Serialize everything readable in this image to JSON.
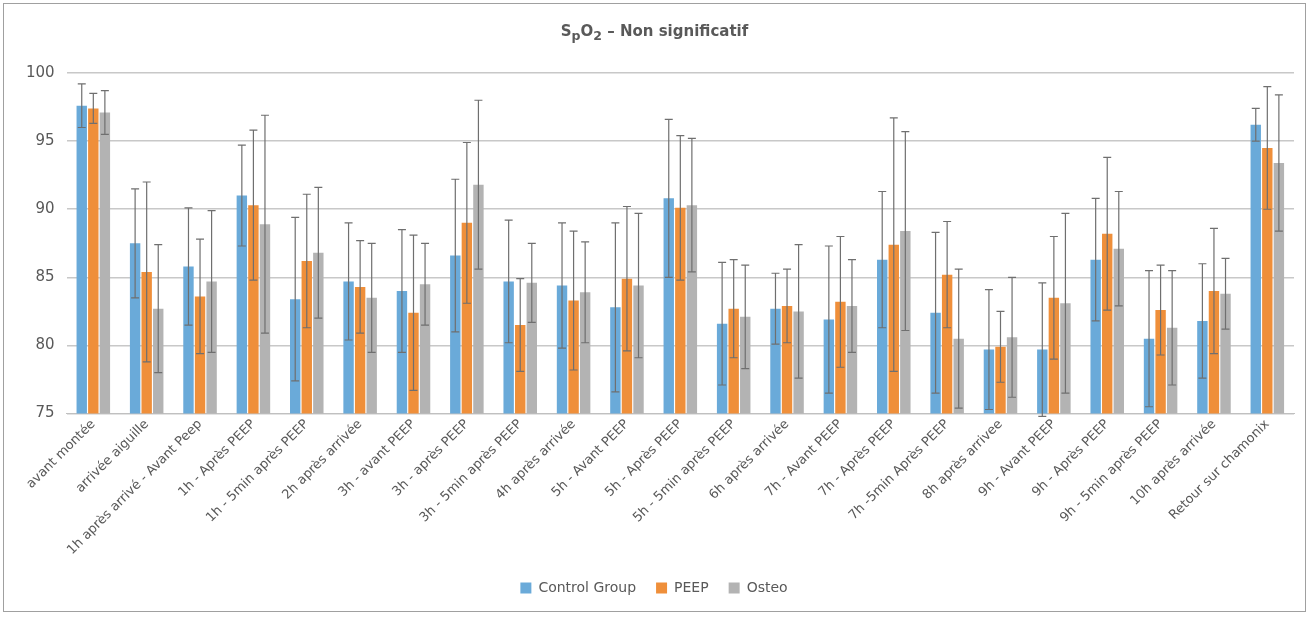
{
  "chart_data": {
    "type": "bar",
    "title": "S$_{p}$O$_{2}$ – Non significatif",
    "categories": [
      "avant montée",
      "arrivée aiguille",
      "1h après arrivé - Avant Peep",
      "1h - Après PEEP",
      "1h - 5min après PEEP",
      "2h après arrivée",
      "3h - avant PEEP",
      "3h - après PEEP",
      "3h - 5min après PEEP",
      "4h après arrivée",
      "5h - Avant PEEP",
      "5h - Après PEEP",
      "5h - 5min après PEEP",
      "6h après arrivée",
      "7h - Avant PEEP",
      "7h - Après PEEP",
      "7h -5min Après PEEP",
      "8h après arrivee",
      "9h - Avant PEEP",
      "9h - Après PEEP",
      "9h - 5min après PEEP",
      "10h après arrivée",
      "Retour sur chamonix"
    ],
    "series": [
      {
        "name": "Control Group",
        "color": "#6aaad9",
        "values": [
          97.6,
          87.5,
          85.8,
          91.0,
          83.4,
          84.7,
          84.0,
          86.6,
          84.7,
          84.4,
          82.8,
          90.8,
          81.6,
          82.7,
          81.9,
          86.3,
          82.4,
          79.7,
          79.7,
          86.3,
          80.5,
          81.8,
          96.2
        ],
        "errors": [
          1.6,
          4.0,
          4.3,
          3.7,
          6.0,
          4.3,
          4.5,
          5.6,
          4.5,
          4.6,
          6.2,
          5.8,
          4.5,
          2.6,
          5.4,
          5.0,
          5.9,
          4.4,
          4.9,
          4.5,
          5.0,
          4.2,
          1.2
        ]
      },
      {
        "name": "PEEP",
        "color": "#ef8f3a",
        "values": [
          97.4,
          85.4,
          83.6,
          90.3,
          86.2,
          84.3,
          82.4,
          89.0,
          81.5,
          83.3,
          84.9,
          90.1,
          82.7,
          82.9,
          83.2,
          87.4,
          85.2,
          79.9,
          83.5,
          88.2,
          82.6,
          84.0,
          94.5
        ],
        "errors": [
          1.1,
          6.6,
          4.2,
          5.5,
          4.9,
          3.4,
          5.7,
          5.9,
          3.4,
          5.1,
          5.3,
          5.3,
          3.6,
          2.7,
          4.8,
          9.3,
          3.9,
          2.6,
          4.5,
          5.6,
          3.3,
          4.6,
          4.5
        ]
      },
      {
        "name": "Osteo",
        "color": "#b3b3b3",
        "values": [
          97.1,
          82.7,
          84.7,
          88.9,
          86.8,
          83.5,
          84.5,
          91.8,
          84.6,
          83.9,
          84.4,
          90.3,
          82.1,
          82.5,
          82.9,
          88.4,
          80.5,
          80.6,
          83.1,
          87.1,
          81.3,
          83.8,
          93.4
        ],
        "errors": [
          1.6,
          4.7,
          5.2,
          8.0,
          4.8,
          4.0,
          3.0,
          6.2,
          2.9,
          3.7,
          5.3,
          4.9,
          3.8,
          4.9,
          3.4,
          7.3,
          5.1,
          4.4,
          6.6,
          4.2,
          4.2,
          2.6,
          5.0
        ]
      }
    ],
    "ylim": [
      75,
      100
    ],
    "yticks": [
      75,
      80,
      85,
      90,
      95,
      100
    ],
    "grid": "y",
    "legend": "bottom"
  }
}
